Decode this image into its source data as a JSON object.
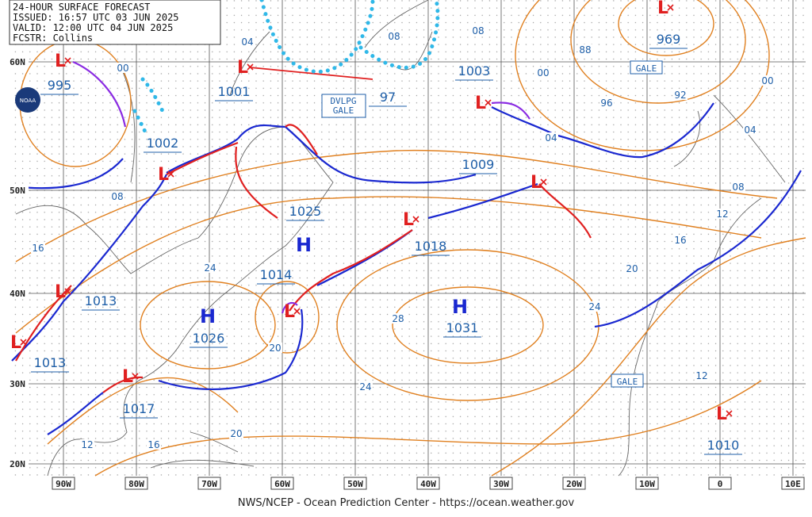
{
  "header": {
    "lines": [
      "24-HOUR SURFACE FORECAST",
      "ISSUED: 16:57 UTC 03 JUN 2025",
      "VALID:  12:00 UTC 04 JUN 2025",
      "FCSTR:  Collins"
    ]
  },
  "footer": "NWS/NCEP - Ocean Prediction Center - https://ocean.weather.gov",
  "logo": "NOAA",
  "latitudes": [
    "60N",
    "50N",
    "40N",
    "30N",
    "20N"
  ],
  "longitudes": [
    "90W",
    "80W",
    "70W",
    "60W",
    "50W",
    "40W",
    "30W",
    "20W",
    "10W",
    "0",
    "10E"
  ],
  "pressure_labels": [
    "995",
    "1001",
    "1002",
    "1003",
    "969",
    "97",
    "1009",
    "1025",
    "1018",
    "1014",
    "1013",
    "1013",
    "1026",
    "1031",
    "1017",
    "1010"
  ],
  "high_labels": [
    "H",
    "H",
    "H"
  ],
  "low_labels": [
    "L",
    "L",
    "L",
    "L",
    "L",
    "L",
    "L",
    "L",
    "L",
    "L",
    "L",
    "L"
  ],
  "isobar_labels": [
    "00",
    "04",
    "08",
    "08",
    "88",
    "00",
    "96",
    "92",
    "00",
    "04",
    "04",
    "08",
    "08",
    "12",
    "16",
    "20",
    "24",
    "16",
    "24",
    "28",
    "20",
    "24",
    "12",
    "20",
    "12",
    "16"
  ],
  "warnings": [
    "GALE",
    "GALE"
  ],
  "developing_warning": [
    "DVLPG",
    "GALE"
  ]
}
